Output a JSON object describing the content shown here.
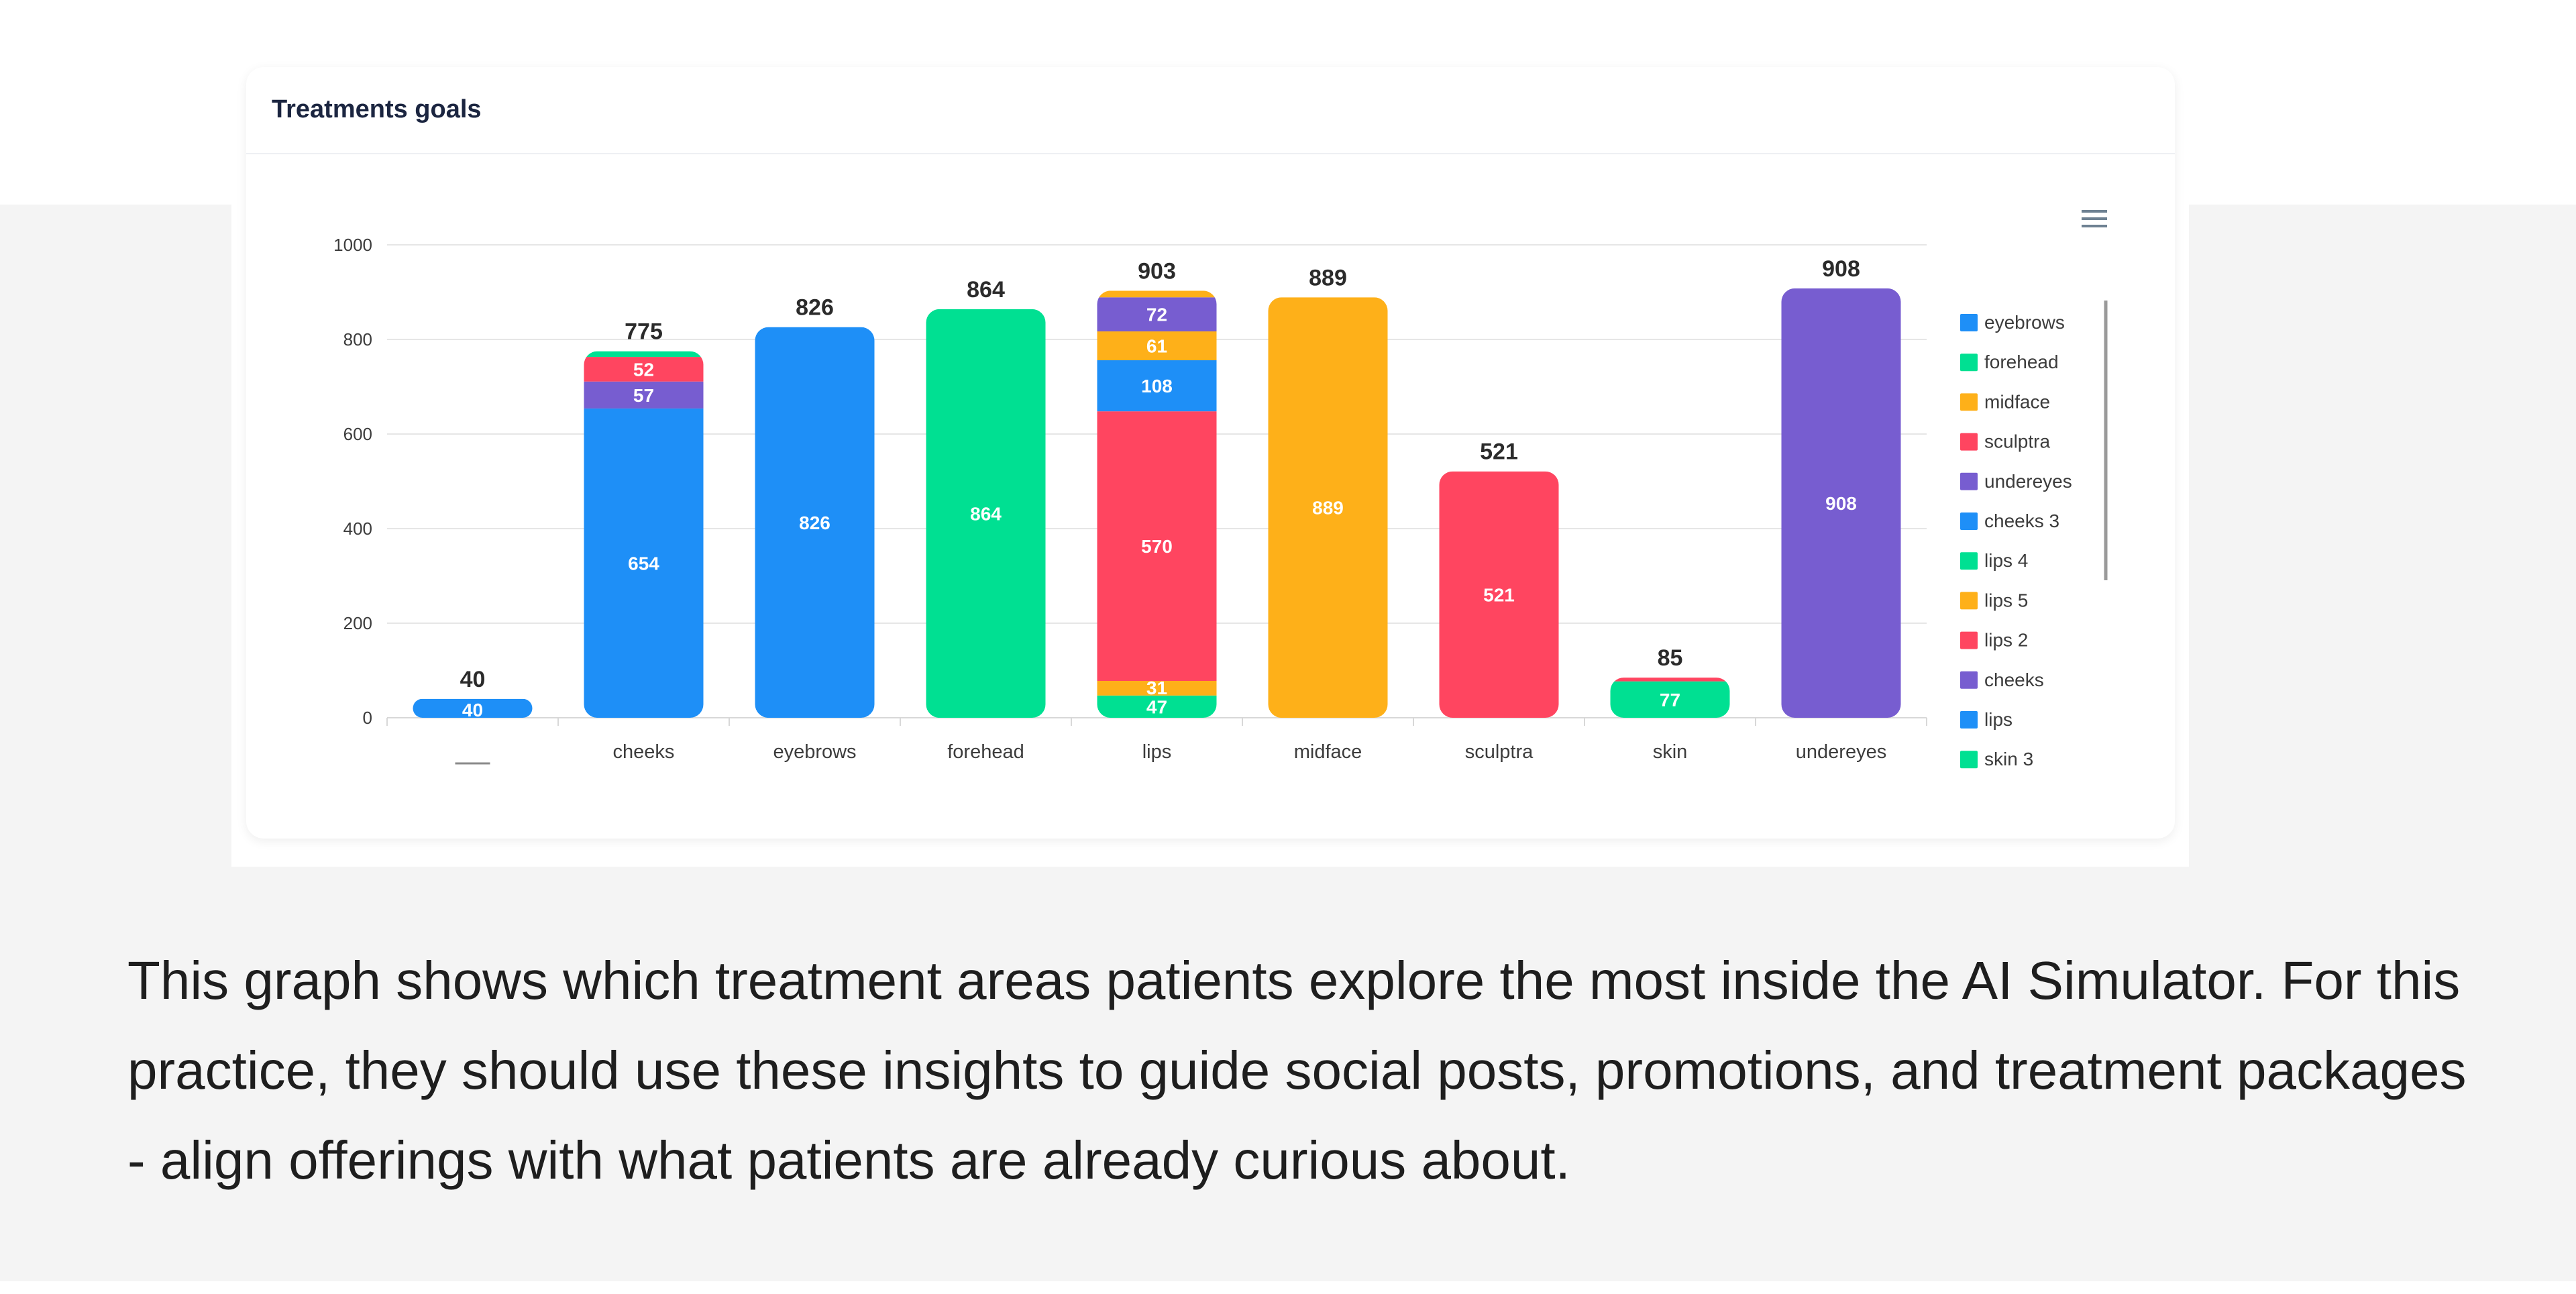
{
  "card": {
    "title": "Treatments goals"
  },
  "caption": "This graph shows which treatment areas patients explore the most inside the AI Simulator. For this practice, they should use these insights to guide social posts, promotions, and treatment packages - align offerings with what patients are already curious about.",
  "chart_data": {
    "type": "bar",
    "stacked": true,
    "title": "Treatments goals",
    "categories": [
      "",
      "cheeks",
      "eyebrows",
      "forehead",
      "lips",
      "midface",
      "sculptra",
      "skin",
      "undereyes"
    ],
    "ylim": [
      0,
      1000
    ],
    "yticks": [
      0,
      200,
      400,
      600,
      800,
      1000
    ],
    "grid": true,
    "legend_position": "right",
    "totals": [
      40,
      775,
      826,
      864,
      903,
      889,
      521,
      85,
      908
    ],
    "series": [
      {
        "name": "eyebrows",
        "color": "#1e8ff7"
      },
      {
        "name": "forehead",
        "color": "#00e092"
      },
      {
        "name": "midface",
        "color": "#feb019"
      },
      {
        "name": "sculptra",
        "color": "#ff4560"
      },
      {
        "name": "undereyes",
        "color": "#775dd0"
      },
      {
        "name": "cheeks 3",
        "color": "#1e8ff7"
      },
      {
        "name": "lips 4",
        "color": "#00e092"
      },
      {
        "name": "lips 5",
        "color": "#feb019"
      },
      {
        "name": "lips 2",
        "color": "#ff4560"
      },
      {
        "name": "cheeks",
        "color": "#775dd0"
      },
      {
        "name": "lips",
        "color": "#1e8ff7"
      },
      {
        "name": "skin 3",
        "color": "#00e092"
      }
    ],
    "stacks": [
      [
        {
          "value": 40,
          "color": "#1e8ff7",
          "label": "40"
        }
      ],
      [
        {
          "value": 654,
          "color": "#1e8ff7",
          "label": "654"
        },
        {
          "value": 57,
          "color": "#775dd0",
          "label": "57"
        },
        {
          "value": 52,
          "color": "#ff4560",
          "label": "52"
        },
        {
          "value": 12,
          "color": "#00e092",
          "label": ""
        }
      ],
      [
        {
          "value": 826,
          "color": "#1e8ff7",
          "label": "826"
        }
      ],
      [
        {
          "value": 864,
          "color": "#00e092",
          "label": "864"
        }
      ],
      [
        {
          "value": 47,
          "color": "#00e092",
          "label": "47"
        },
        {
          "value": 31,
          "color": "#feb019",
          "label": "31"
        },
        {
          "value": 570,
          "color": "#ff4560",
          "label": "570"
        },
        {
          "value": 108,
          "color": "#1e8ff7",
          "label": "108"
        },
        {
          "value": 61,
          "color": "#feb019",
          "label": "61"
        },
        {
          "value": 72,
          "color": "#775dd0",
          "label": "72"
        },
        {
          "value": 14,
          "color": "#feb019",
          "label": ""
        }
      ],
      [
        {
          "value": 889,
          "color": "#feb019",
          "label": "889"
        }
      ],
      [
        {
          "value": 521,
          "color": "#ff4560",
          "label": "521"
        }
      ],
      [
        {
          "value": 77,
          "color": "#00e092",
          "label": "77"
        },
        {
          "value": 8,
          "color": "#ff4560",
          "label": ""
        }
      ],
      [
        {
          "value": 908,
          "color": "#775dd0",
          "label": "908"
        }
      ]
    ]
  }
}
